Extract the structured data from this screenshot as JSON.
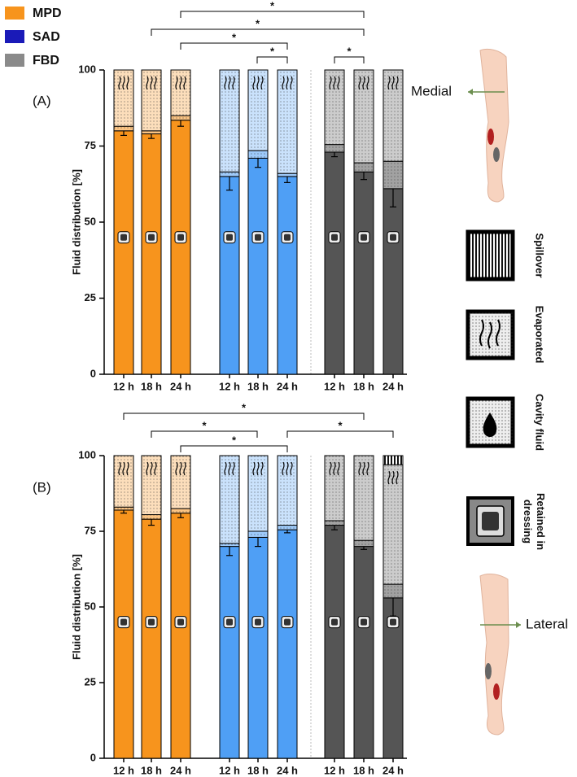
{
  "groups": [
    {
      "name": "MPD",
      "color": "#f7941d",
      "bar_color": "#f7941d"
    },
    {
      "name": "SAD",
      "color": "#1a1ab8",
      "bar_color": "#4f9ff5"
    },
    {
      "name": "FBD",
      "color": "#8a8a8a",
      "bar_color": "#555555"
    }
  ],
  "side_labels": {
    "medial": "Medial",
    "lateral": "Lateral"
  },
  "chart_data": [
    {
      "type": "bar",
      "stacked": true,
      "label": "(A)",
      "ylabel": "Fluid distribution [%]",
      "categories": [
        "12 h",
        "18 h",
        "24 h",
        "12 h",
        "18 h",
        "24 h",
        "12 h",
        "18 h",
        "24 h"
      ],
      "series": [
        {
          "name": "Retained in dressing",
          "values": [
            80,
            79,
            83.5,
            65,
            71,
            65,
            73,
            66.5,
            61
          ],
          "errors": [
            1.5,
            1.5,
            2,
            4.5,
            3,
            2,
            1.5,
            2.5,
            6
          ]
        },
        {
          "name": "Cavity fluid",
          "values": [
            1.5,
            1,
            1.5,
            1.5,
            2.5,
            1,
            2.5,
            3,
            9
          ]
        },
        {
          "name": "Evaporated",
          "values": [
            18.5,
            20,
            15,
            33.5,
            26.5,
            34,
            24.5,
            30.5,
            30
          ]
        },
        {
          "name": "Spillover",
          "values": [
            0,
            0,
            0,
            0,
            0,
            0,
            0,
            0,
            0
          ]
        }
      ],
      "ylim": [
        0,
        100
      ],
      "yticks": [
        0,
        25,
        50,
        75,
        100
      ],
      "annotations": [
        "*",
        "*",
        "*",
        "*",
        "*"
      ]
    },
    {
      "type": "bar",
      "stacked": true,
      "label": "(B)",
      "ylabel": "Fluid distribution [%]",
      "categories": [
        "12 h",
        "18 h",
        "24 h",
        "12 h",
        "18 h",
        "24 h",
        "12 h",
        "18 h",
        "24 h"
      ],
      "series": [
        {
          "values": [
            82,
            79,
            81,
            70,
            73,
            75.5,
            77,
            70,
            53
          ],
          "errors": [
            1,
            2,
            1.5,
            3,
            3,
            1,
            1.5,
            1,
            6
          ]
        },
        {
          "values": [
            1,
            1.5,
            1.5,
            1,
            2,
            1.5,
            1.5,
            2,
            4.5
          ]
        },
        {
          "values": [
            17,
            19.5,
            17.5,
            29,
            25,
            23,
            21.5,
            28,
            39.5
          ]
        },
        {
          "values": [
            0,
            0,
            0,
            0,
            0,
            0,
            0,
            0,
            3
          ]
        }
      ],
      "ylim": [
        0,
        100
      ],
      "yticks": [
        0,
        25,
        50,
        75,
        100
      ],
      "annotations": [
        "*",
        "*",
        "*",
        "*"
      ]
    }
  ]
}
